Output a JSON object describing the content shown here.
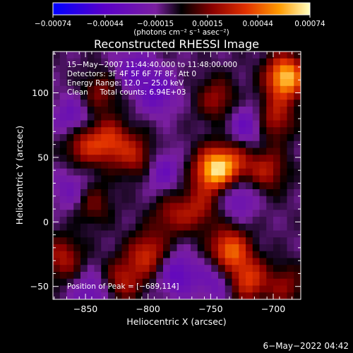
{
  "chart_data": {
    "type": "heatmap",
    "title": "Reconstructed RHESSI Image",
    "xlabel": "Heliocentric X (arcsec)",
    "ylabel": "Heliocentric Y (arcsec)",
    "xlim": [
      -876,
      -678
    ],
    "ylim": [
      -60,
      132
    ],
    "x_ticks": [
      -850,
      -800,
      -750,
      -700
    ],
    "x_tick_labels": [
      "−850",
      "−800",
      "−750",
      "−700"
    ],
    "y_ticks": [
      -50,
      0,
      50,
      100
    ],
    "y_tick_labels": [
      "−50",
      "0",
      "50",
      "100"
    ],
    "colorbar": {
      "range": [
        -0.00074,
        0.00074
      ],
      "ticks": [
        -0.00074,
        -0.00044,
        -0.00015,
        0.00015,
        0.00044,
        0.00074
      ],
      "tick_labels": [
        "−0.00074",
        "−0.00044",
        "−0.00015",
        "0.00015",
        "0.00044",
        "0.00074"
      ],
      "unit_label": "(photons cm⁻² s⁻¹ asec⁻²)",
      "colors": [
        "#0000ff",
        "#5a00c8",
        "#7a1fa0",
        "#000000",
        "#8a0000",
        "#e03000",
        "#ff9a00",
        "#ffffc0"
      ]
    },
    "annotations": [
      "15−May−2007 11:44:40.000 to 11:48:00.000",
      "Detectors: 3F 4F 5F 6F 7F 8F, Att 0",
      "Energy Range: 12.0 − 25.0 keV",
      "Clean     Total counts: 6.94E+03"
    ],
    "peak_label": "Position of Peak = [−689,114]",
    "peak": {
      "x": -689,
      "y": 114
    },
    "footer_date": "6−May−2022 04:42",
    "hotspots": [
      {
        "x": -690,
        "y": 112,
        "v": 1.0
      },
      {
        "x": -748,
        "y": 40,
        "v": 0.9
      },
      {
        "x": -732,
        "y": 45,
        "v": 0.5
      },
      {
        "x": -735,
        "y": -22,
        "v": 0.75
      },
      {
        "x": -720,
        "y": -45,
        "v": 0.6
      },
      {
        "x": -852,
        "y": 60,
        "v": 0.5
      },
      {
        "x": -830,
        "y": 62,
        "v": 0.55
      },
      {
        "x": -808,
        "y": 50,
        "v": 0.45
      },
      {
        "x": -800,
        "y": -25,
        "v": 0.55
      },
      {
        "x": -820,
        "y": -45,
        "v": 0.45
      },
      {
        "x": -868,
        "y": -28,
        "v": 0.45
      },
      {
        "x": -745,
        "y": 95,
        "v": 0.4
      },
      {
        "x": -782,
        "y": 5,
        "v": 0.35
      },
      {
        "x": -705,
        "y": 40,
        "v": 0.45
      },
      {
        "x": -700,
        "y": 80,
        "v": 0.5
      },
      {
        "x": -760,
        "y": 10,
        "v": 0.4
      },
      {
        "x": -838,
        "y": 100,
        "v": 0.35
      },
      {
        "x": -845,
        "y": 15,
        "v": 0.35
      },
      {
        "x": -690,
        "y": -50,
        "v": 0.35
      }
    ],
    "coldspots": [
      {
        "x": -860,
        "y": 80,
        "v": -0.35
      },
      {
        "x": -860,
        "y": 25,
        "v": -0.3
      },
      {
        "x": -792,
        "y": 100,
        "v": -0.35
      },
      {
        "x": -790,
        "y": 40,
        "v": -0.35
      },
      {
        "x": -777,
        "y": -40,
        "v": -0.4
      },
      {
        "x": -745,
        "y": -45,
        "v": -0.3
      },
      {
        "x": -720,
        "y": 75,
        "v": -0.4
      },
      {
        "x": -728,
        "y": 20,
        "v": -0.35
      },
      {
        "x": -812,
        "y": 118,
        "v": -0.3
      },
      {
        "x": -845,
        "y": -55,
        "v": -0.3
      }
    ]
  }
}
